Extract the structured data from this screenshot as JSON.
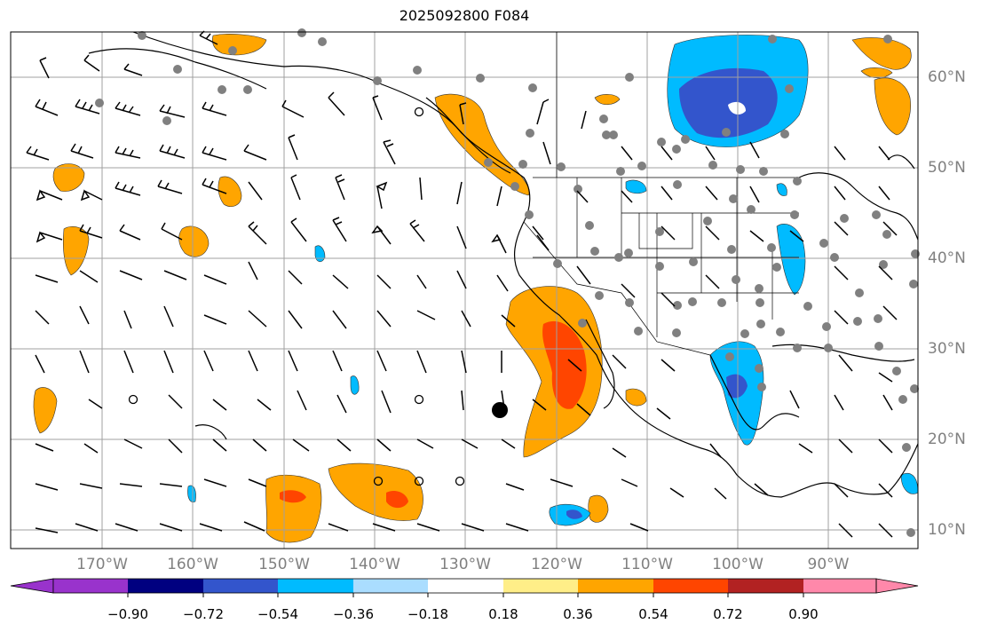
{
  "title": "2025092800 F084",
  "map": {
    "lat_labels": [
      "60°N",
      "50°N",
      "40°N",
      "30°N",
      "20°N",
      "10°N"
    ],
    "lon_labels": [
      "170°W",
      "160°W",
      "150°W",
      "140°W",
      "130°W",
      "120°W",
      "110°W",
      "100°W",
      "90°W"
    ],
    "grid": true,
    "features": [
      "coastlines",
      "country-borders",
      "state-borders",
      "wind-barbs",
      "station-dots",
      "filled-contours",
      "storm-center-marker"
    ]
  },
  "colorbar": {
    "tick_labels": [
      "−0.90",
      "−0.72",
      "−0.54",
      "−0.36",
      "−0.18",
      "0.18",
      "0.36",
      "0.54",
      "0.72",
      "0.90"
    ],
    "colors": [
      "#9933cc",
      "#000080",
      "#3355cc",
      "#00bbff",
      "#aaddff",
      "#ffffff",
      "#ffee88",
      "#ffa500",
      "#ff4500",
      "#b22222",
      "#ff88aa"
    ],
    "extend": "both"
  },
  "colors": {
    "positive_contour": "#ffa500",
    "strong_positive": "#ff4500",
    "negative_contour": "#00bbff",
    "strong_negative": "#3355cc",
    "station_dot": "#808080",
    "grid": "#a0a0a0",
    "axis_label": "#808080"
  }
}
